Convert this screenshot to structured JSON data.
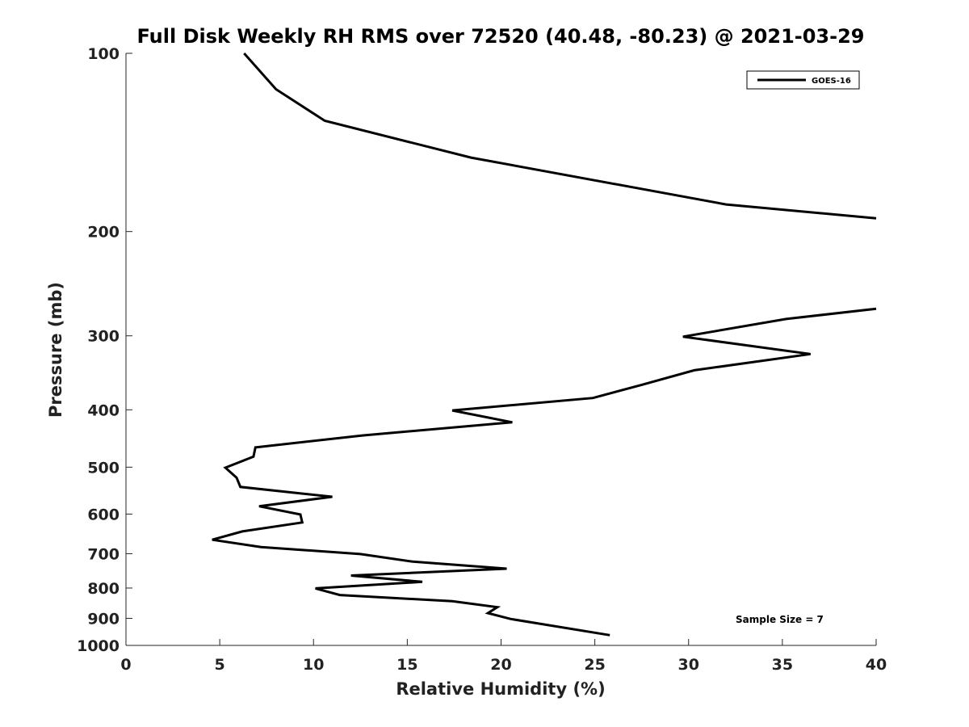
{
  "chart_data": {
    "type": "line",
    "title": "Full Disk Weekly RH RMS over 72520 (40.48, -80.23) @ 2021-03-29",
    "xlabel": "Relative Humidity (%)",
    "ylabel": "Pressure (mb)",
    "xlim": [
      0,
      40
    ],
    "ylim": [
      100,
      1000
    ],
    "y_scale": "log",
    "y_reversed": true,
    "x_ticks": [
      0,
      5,
      10,
      15,
      20,
      25,
      30,
      35,
      40
    ],
    "y_ticks": [
      100,
      200,
      300,
      400,
      500,
      600,
      700,
      800,
      900,
      1000
    ],
    "grid": false,
    "legend": "top-right",
    "annotation": "Sample Size = 7",
    "series": [
      {
        "name": "GOES-16",
        "color": "#000000",
        "points": [
          [
            6.3,
            100
          ],
          [
            8.0,
            115
          ],
          [
            10.6,
            130
          ],
          [
            18.4,
            150
          ],
          [
            32.0,
            180
          ],
          [
            40.0,
            190
          ],
          [
            null,
            null
          ],
          [
            40.0,
            270
          ],
          [
            35.2,
            281
          ],
          [
            29.7,
            301
          ],
          [
            36.5,
            322
          ],
          [
            30.3,
            343
          ],
          [
            27.5,
            363
          ],
          [
            24.9,
            382
          ],
          [
            17.4,
            401
          ],
          [
            20.6,
            420
          ],
          [
            12.6,
            442
          ],
          [
            6.9,
            463
          ],
          [
            6.8,
            480
          ],
          [
            5.3,
            501
          ],
          [
            5.9,
            521
          ],
          [
            6.1,
            540
          ],
          [
            11.0,
            561
          ],
          [
            7.1,
            582
          ],
          [
            9.3,
            601
          ],
          [
            9.4,
            620
          ],
          [
            6.2,
            642
          ],
          [
            4.6,
            663
          ],
          [
            7.2,
            682
          ],
          [
            12.5,
            701
          ],
          [
            15.3,
            722
          ],
          [
            20.3,
            742
          ],
          [
            12.0,
            762
          ],
          [
            15.8,
            781
          ],
          [
            10.1,
            801
          ],
          [
            11.4,
            822
          ],
          [
            17.4,
            842
          ],
          [
            19.8,
            862
          ],
          [
            19.3,
            882
          ],
          [
            20.5,
            902
          ],
          [
            25.8,
            961
          ]
        ]
      }
    ]
  }
}
